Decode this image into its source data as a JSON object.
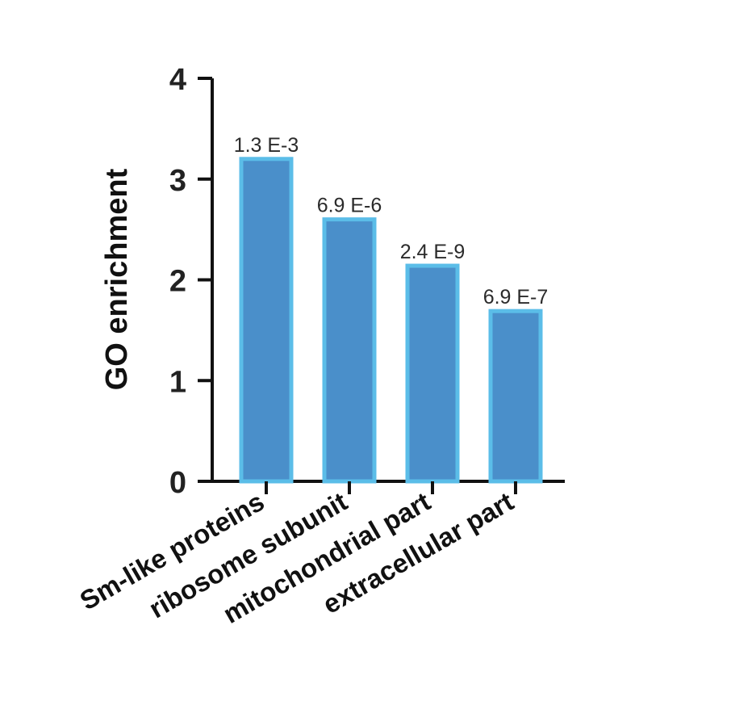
{
  "chart_data": {
    "type": "bar",
    "title": "",
    "xlabel": "",
    "ylabel": "GO enrichment",
    "ylim": [
      0,
      4
    ],
    "yticks": [
      0,
      1,
      2,
      3,
      4
    ],
    "categories": [
      "Sm-like proteins",
      "ribosome subunit",
      "mitochondrial part",
      "extracellular part"
    ],
    "values": [
      3.2,
      2.6,
      2.14,
      1.69
    ],
    "data_labels": [
      "1.3 E-3",
      "6.9 E-6",
      "2.4 E-9",
      "6.9 E-7"
    ],
    "grid": false,
    "legend": "none",
    "colors": {
      "bar_fill": "#4a8fca",
      "bar_edge": "#5bbde8",
      "axis": "#111111"
    }
  }
}
